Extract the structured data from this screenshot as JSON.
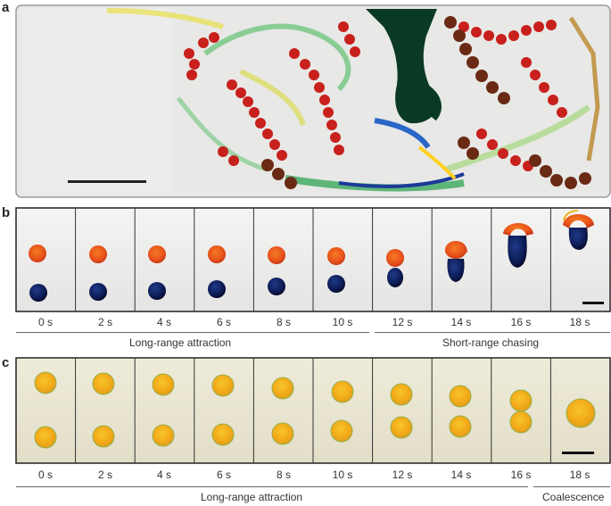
{
  "panels": {
    "a": {
      "label": "a"
    },
    "b": {
      "label": "b",
      "times": [
        "0 s",
        "2 s",
        "4 s",
        "6 s",
        "8 s",
        "10 s",
        "12 s",
        "14 s",
        "16 s",
        "18 s"
      ],
      "phases": [
        "Long-range attraction",
        "Short-range chasing"
      ]
    },
    "c": {
      "label": "c",
      "times": [
        "0 s",
        "2 s",
        "4 s",
        "6 s",
        "8 s",
        "10 s",
        "12 s",
        "14 s",
        "16 s",
        "18 s"
      ],
      "phases": [
        "Long-range attraction",
        "Coalescence"
      ]
    }
  },
  "colors": {
    "orange_droplet": "#e8521a",
    "blue_droplet": "#0c1a52",
    "yellow_droplet": "#f2b21a",
    "trail_red": "#c8201c",
    "trail_green": "#4ab864",
    "trail_dark": "#0b3a24",
    "trail_brown": "#6a2a14"
  }
}
